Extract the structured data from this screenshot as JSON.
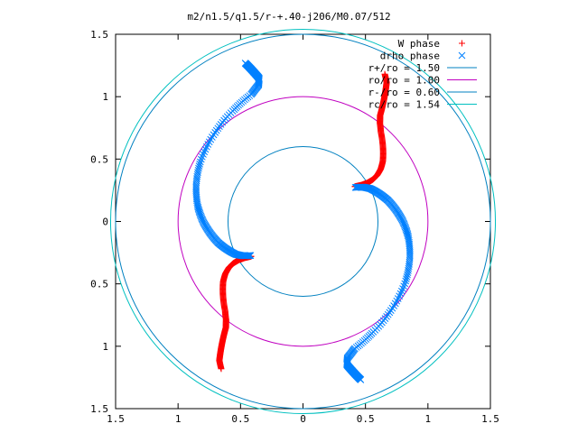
{
  "chart_data": {
    "type": "scatter",
    "title": "m2/n1.5/q1.5/r-+.40-j206/M0.07/512",
    "xlabel": "",
    "ylabel": "",
    "xlim": [
      -1.5,
      1.5
    ],
    "ylim": [
      -1.5,
      1.5
    ],
    "x_ticks": [
      -1.5,
      -1,
      -0.5,
      0,
      0.5,
      1,
      1.5
    ],
    "y_ticks": [
      -1.5,
      -1,
      -0.5,
      0,
      0.5,
      1,
      1.5
    ],
    "x_tick_labels": [
      "1.5",
      "1",
      "0.5",
      "0",
      "0.5",
      "1",
      "1.5"
    ],
    "y_tick_labels": [
      "1.5",
      "1",
      "0.5",
      "0",
      "0.5",
      "1",
      "1.5"
    ],
    "grid": false,
    "legend_position": "top-right",
    "series": [
      {
        "name": "W phase",
        "marker": "plus",
        "color": "#ff0000",
        "arms": [
          {
            "r": [
              0.5,
              0.55,
              0.6,
              0.65,
              0.7,
              0.75,
              0.8,
              0.85,
              0.9,
              0.95,
              1.0,
              1.05,
              1.1,
              1.15,
              1.2,
              1.25,
              1.3,
              1.35
            ],
            "theta_deg": [
              34,
              32,
              31,
              31,
              32,
              34,
              37,
              41,
              45,
              49,
              52,
              54,
              55,
              56,
              57,
              58,
              59,
              61
            ]
          },
          {
            "r": [
              0.5,
              0.55,
              0.6,
              0.65,
              0.7,
              0.75,
              0.8,
              0.85,
              0.9,
              0.95,
              1.0,
              1.05,
              1.1,
              1.15,
              1.2,
              1.25,
              1.3,
              1.35
            ],
            "theta_deg": [
              214,
              212,
              211,
              211,
              212,
              214,
              217,
              221,
              225,
              229,
              232,
              234,
              235,
              236,
              237,
              238,
              239,
              241
            ]
          }
        ]
      },
      {
        "name": "drho phase",
        "marker": "cross",
        "color": "#0080ff",
        "arms": [
          {
            "r": [
              1.35,
              1.3,
              1.25,
              1.2,
              1.15,
              1.1,
              1.05,
              1.0,
              0.95,
              0.9,
              0.85,
              0.8,
              0.75,
              0.7,
              0.65,
              0.6,
              0.55,
              0.5
            ],
            "theta_deg": [
              -70,
              -71,
              -72,
              -73,
              -72,
              -68,
              -58,
              -45,
              -30,
              -18,
              -8,
              0,
              7,
              14,
              20,
              26,
              30,
              33
            ]
          },
          {
            "r": [
              1.35,
              1.3,
              1.25,
              1.2,
              1.15,
              1.1,
              1.05,
              1.0,
              0.95,
              0.9,
              0.85,
              0.8,
              0.75,
              0.7,
              0.65,
              0.6,
              0.55,
              0.5
            ],
            "theta_deg": [
              110,
              109,
              108,
              107,
              108,
              112,
              122,
              135,
              150,
              162,
              172,
              180,
              187,
              194,
              200,
              206,
              210,
              213
            ]
          }
        ]
      },
      {
        "name": "r+/ro = 1.50",
        "type": "circle",
        "radius": 1.5,
        "color": "#0080c0"
      },
      {
        "name": "ro/ro = 1.00",
        "type": "circle",
        "radius": 1.0,
        "color": "#c000c0"
      },
      {
        "name": "r-/ro = 0.60",
        "type": "circle",
        "radius": 0.6,
        "color": "#0080c0"
      },
      {
        "name": "rc/ro = 1.54",
        "type": "circle",
        "radius": 1.54,
        "color": "#00c0c0"
      }
    ],
    "legend_text": [
      "W phase",
      "drho phase",
      "r+/ro = 1.50",
      "ro/ro = 1.00",
      "r-/ro = 0.60",
      "rc/ro = 1.54"
    ]
  }
}
